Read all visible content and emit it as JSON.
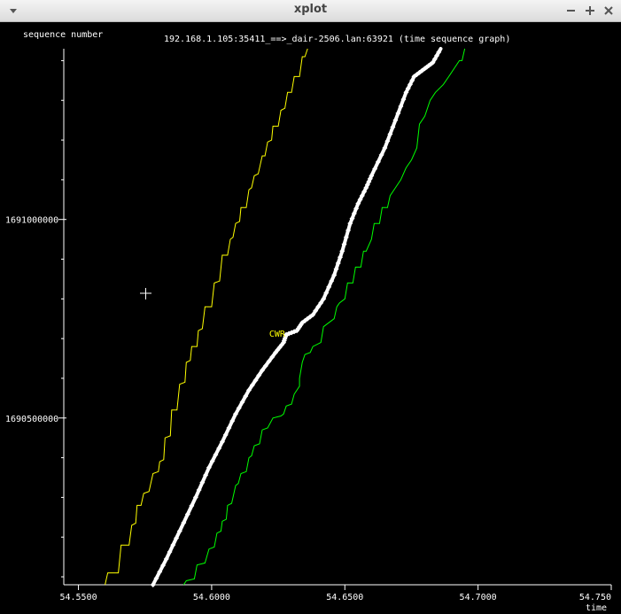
{
  "window": {
    "title": "xplot",
    "menu_icon": "chevron-down-icon",
    "minimize_icon": "minimize-icon",
    "maximize_icon": "maximize-icon",
    "close_icon": "close-icon"
  },
  "chart_data": {
    "type": "line",
    "title": "192.168.1.105:35411_==>_dair-2506.lan:63921 (time sequence graph)",
    "ylabel": "sequence number",
    "xlabel": "time",
    "xlim": [
      54.5445,
      54.75
    ],
    "ylim": [
      1690080000,
      1691430000
    ],
    "x_ticks": [
      54.55,
      54.6,
      54.65,
      54.7,
      54.75
    ],
    "x_tick_labels": [
      "54.5500",
      "54.6000",
      "54.6500",
      "54.7000",
      "54.750"
    ],
    "y_ticks": [
      1690500000,
      1691000000
    ],
    "y_tick_labels": [
      "1690500000",
      "1691000000"
    ],
    "annotations": [
      {
        "text": "CWR",
        "x": 54.6256,
        "y": 1690700000,
        "color": "#ffff00"
      }
    ],
    "colors": {
      "window": "#ffff00",
      "segments": "#ffffff",
      "ack": "#00ff00",
      "axis": "#ffffff",
      "background": "#000000"
    },
    "series": [
      {
        "values": [
          [
            54.56,
            1690080000
          ],
          [
            54.561,
            1690110000
          ],
          [
            54.565,
            1690110000
          ],
          [
            54.566,
            1690180000
          ],
          [
            54.569,
            1690180000
          ],
          [
            54.57,
            1690230000
          ],
          [
            54.5715,
            1690235000
          ],
          [
            54.572,
            1690280000
          ],
          [
            54.5735,
            1690280000
          ],
          [
            54.5745,
            1690310000
          ],
          [
            54.5765,
            1690315000
          ],
          [
            54.578,
            1690360000
          ],
          [
            54.58,
            1690365000
          ],
          [
            54.5805,
            1690390000
          ],
          [
            54.582,
            1690395000
          ],
          [
            54.5825,
            1690450000
          ],
          [
            54.5845,
            1690455000
          ],
          [
            54.585,
            1690520000
          ],
          [
            54.587,
            1690520000
          ],
          [
            54.588,
            1690585000
          ],
          [
            54.59,
            1690590000
          ],
          [
            54.5905,
            1690640000
          ],
          [
            54.592,
            1690645000
          ],
          [
            54.5925,
            1690680000
          ],
          [
            54.5945,
            1690680000
          ],
          [
            54.595,
            1690720000
          ],
          [
            54.5965,
            1690725000
          ],
          [
            54.5975,
            1690780000
          ],
          [
            54.6,
            1690780000
          ],
          [
            54.601,
            1690840000
          ],
          [
            54.603,
            1690845000
          ],
          [
            54.604,
            1690910000
          ],
          [
            54.606,
            1690910000
          ],
          [
            54.607,
            1690950000
          ],
          [
            54.608,
            1690955000
          ],
          [
            54.609,
            1690990000
          ],
          [
            54.6105,
            1690995000
          ],
          [
            54.611,
            1691030000
          ],
          [
            54.613,
            1691030000
          ],
          [
            54.614,
            1691075000
          ],
          [
            54.615,
            1691080000
          ],
          [
            54.616,
            1691110000
          ],
          [
            54.6175,
            1691115000
          ],
          [
            54.619,
            1691160000
          ],
          [
            54.62,
            1691160000
          ],
          [
            54.621,
            1691195000
          ],
          [
            54.6225,
            1691200000
          ],
          [
            54.623,
            1691235000
          ],
          [
            54.625,
            1691235000
          ],
          [
            54.626,
            1691275000
          ],
          [
            54.6275,
            1691280000
          ],
          [
            54.6285,
            1691320000
          ],
          [
            54.63,
            1691320000
          ],
          [
            54.631,
            1691360000
          ],
          [
            54.633,
            1691360000
          ],
          [
            54.634,
            1691410000
          ],
          [
            54.635,
            1691410000
          ],
          [
            54.636,
            1691430000
          ]
        ]
      },
      {
        "values": [
          [
            54.578,
            1690080000
          ],
          [
            54.583,
            1690145000
          ],
          [
            54.588,
            1690215000
          ],
          [
            54.594,
            1690300000
          ],
          [
            54.599,
            1690375000
          ],
          [
            54.604,
            1690440000
          ],
          [
            54.609,
            1690510000
          ],
          [
            54.614,
            1690570000
          ],
          [
            54.619,
            1690620000
          ],
          [
            54.624,
            1690665000
          ],
          [
            54.627,
            1690690000
          ],
          [
            54.628,
            1690710000
          ],
          [
            54.632,
            1690720000
          ],
          [
            54.634,
            1690740000
          ],
          [
            54.638,
            1690760000
          ],
          [
            54.642,
            1690800000
          ],
          [
            54.646,
            1690860000
          ],
          [
            54.649,
            1690920000
          ],
          [
            54.652,
            1690990000
          ],
          [
            54.655,
            1691040000
          ],
          [
            54.658,
            1691080000
          ],
          [
            54.66,
            1691110000
          ],
          [
            54.665,
            1691180000
          ],
          [
            54.669,
            1691250000
          ],
          [
            54.673,
            1691320000
          ],
          [
            54.676,
            1691360000
          ],
          [
            54.68,
            1691380000
          ],
          [
            54.683,
            1691395000
          ],
          [
            54.686,
            1691430000
          ]
        ]
      },
      {
        "values": [
          [
            54.5895,
            1690080000
          ],
          [
            54.5905,
            1690090000
          ],
          [
            54.5935,
            1690095000
          ],
          [
            54.5945,
            1690130000
          ],
          [
            54.5975,
            1690135000
          ],
          [
            54.599,
            1690170000
          ],
          [
            54.601,
            1690175000
          ],
          [
            54.602,
            1690210000
          ],
          [
            54.6035,
            1690215000
          ],
          [
            54.604,
            1690240000
          ],
          [
            54.6055,
            1690245000
          ],
          [
            54.606,
            1690280000
          ],
          [
            54.6075,
            1690285000
          ],
          [
            54.609,
            1690330000
          ],
          [
            54.61,
            1690335000
          ],
          [
            54.611,
            1690360000
          ],
          [
            54.613,
            1690365000
          ],
          [
            54.614,
            1690400000
          ],
          [
            54.615,
            1690405000
          ],
          [
            54.616,
            1690430000
          ],
          [
            54.618,
            1690435000
          ],
          [
            54.619,
            1690470000
          ],
          [
            54.621,
            1690475000
          ],
          [
            54.623,
            1690500000
          ],
          [
            54.626,
            1690505000
          ],
          [
            54.627,
            1690510000
          ],
          [
            54.628,
            1690530000
          ],
          [
            54.63,
            1690535000
          ],
          [
            54.631,
            1690560000
          ],
          [
            54.632,
            1690570000
          ],
          [
            54.633,
            1690580000
          ],
          [
            54.633,
            1690600000
          ],
          [
            54.634,
            1690640000
          ],
          [
            54.635,
            1690660000
          ],
          [
            54.637,
            1690665000
          ],
          [
            54.638,
            1690680000
          ],
          [
            54.641,
            1690690000
          ],
          [
            54.642,
            1690730000
          ],
          [
            54.644,
            1690740000
          ],
          [
            54.646,
            1690750000
          ],
          [
            54.647,
            1690780000
          ],
          [
            54.648,
            1690790000
          ],
          [
            54.65,
            1690800000
          ],
          [
            54.651,
            1690840000
          ],
          [
            54.653,
            1690840000
          ],
          [
            54.654,
            1690880000
          ],
          [
            54.656,
            1690880000
          ],
          [
            54.657,
            1690920000
          ],
          [
            54.658,
            1690920000
          ],
          [
            54.66,
            1690950000
          ],
          [
            54.661,
            1690990000
          ],
          [
            54.663,
            1690990000
          ],
          [
            54.664,
            1691030000
          ],
          [
            54.666,
            1691030000
          ],
          [
            54.667,
            1691060000
          ],
          [
            54.669,
            1691080000
          ],
          [
            54.671,
            1691100000
          ],
          [
            54.673,
            1691130000
          ],
          [
            54.675,
            1691150000
          ],
          [
            54.677,
            1691180000
          ],
          [
            54.678,
            1691240000
          ],
          [
            54.68,
            1691260000
          ],
          [
            54.682,
            1691300000
          ],
          [
            54.684,
            1691320000
          ],
          [
            54.687,
            1691340000
          ],
          [
            54.689,
            1691360000
          ],
          [
            54.691,
            1691380000
          ],
          [
            54.693,
            1691400000
          ],
          [
            54.694,
            1691400000
          ],
          [
            54.695,
            1691430000
          ]
        ]
      }
    ]
  }
}
